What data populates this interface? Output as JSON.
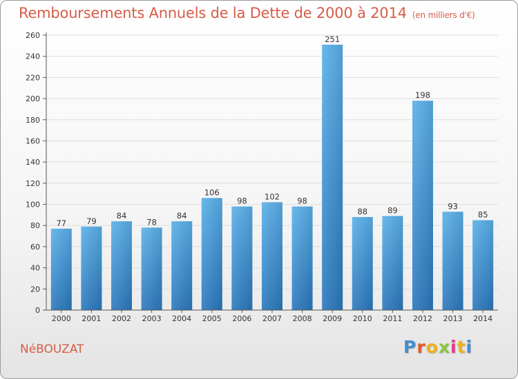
{
  "title": "Remboursements Annuels de la Dette de 2000 à 2014",
  "subtitle": "(en milliers d'€)",
  "commune": "NéBOUZAT",
  "logo": {
    "text": "Proxiti",
    "name": "proxiti-logo"
  },
  "colors": {
    "title": "#d65c47",
    "bar_top": "#5ab0ea",
    "bar_bottom": "#2a78bd",
    "grid": "#dddddd"
  },
  "chart_data": {
    "type": "bar",
    "title": "Remboursements Annuels de la Dette de 2000 à 2014",
    "subtitle": "(en milliers d'€)",
    "xlabel": "",
    "ylabel": "",
    "categories": [
      "2000",
      "2001",
      "2002",
      "2003",
      "2004",
      "2005",
      "2006",
      "2007",
      "2008",
      "2009",
      "2010",
      "2011",
      "2012",
      "2013",
      "2014"
    ],
    "values": [
      77,
      79,
      84,
      78,
      84,
      106,
      98,
      102,
      98,
      251,
      88,
      89,
      198,
      93,
      85
    ],
    "value_labels": [
      "77",
      "79",
      "84",
      "78",
      "84",
      "106",
      "98",
      "102",
      "98",
      "251",
      "88",
      "89",
      "198",
      "93",
      "85"
    ],
    "ylim": [
      0,
      260
    ],
    "yticks": [
      0,
      20,
      40,
      60,
      80,
      100,
      120,
      140,
      160,
      180,
      200,
      220,
      240,
      260
    ],
    "ytick_labels": [
      "0",
      "20",
      "40",
      "60",
      "80",
      "100",
      "120",
      "140",
      "160",
      "180",
      "200",
      "220",
      "240",
      "260"
    ],
    "grid": true,
    "legend": "none"
  }
}
